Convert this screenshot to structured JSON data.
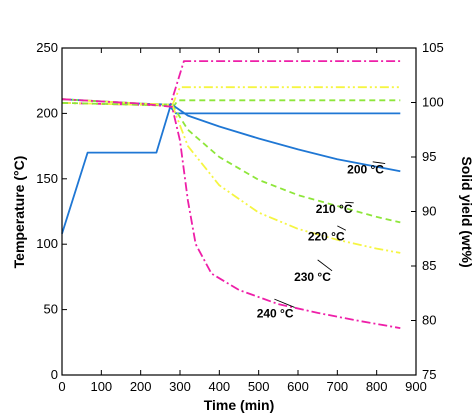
{
  "chart_data": {
    "type": "line",
    "xlabel": "Time (min)",
    "ylabel_left": "Temperature (°C)",
    "ylabel_right": "Solid yield (wt%)",
    "xlim": [
      0,
      900
    ],
    "ylim_left": [
      0,
      250
    ],
    "ylim_right": [
      75,
      105
    ],
    "x_ticks": [
      "0",
      "100",
      "200",
      "300",
      "400",
      "500",
      "600",
      "700",
      "800",
      "900"
    ],
    "y_ticks_left": [
      "0",
      "50",
      "100",
      "150",
      "200",
      "250"
    ],
    "y_ticks_right": [
      "75",
      "80",
      "85",
      "90",
      "95",
      "100",
      "105"
    ],
    "grid": false,
    "legend": "none",
    "series": [
      {
        "axis": "left",
        "color": "#1f77d4",
        "dash": "solid",
        "x": [
          0,
          65,
          240,
          275,
          290,
          860
        ],
        "y": [
          108,
          170,
          170,
          205,
          200,
          200
        ]
      },
      {
        "axis": "left",
        "color": "#ee1fa8",
        "dash": "dashdot",
        "x": [
          0,
          275,
          310,
          860
        ],
        "y": [
          208,
          206,
          240,
          240
        ]
      },
      {
        "axis": "left",
        "color": "#f5f542",
        "dash": "dashdotdot",
        "x": [
          0,
          280,
          300,
          860
        ],
        "y": [
          208,
          206,
          220,
          220
        ]
      },
      {
        "axis": "left",
        "color": "#8ee63a",
        "dash": "dashed",
        "x": [
          0,
          285,
          295,
          860
        ],
        "y": [
          208,
          206,
          210,
          210
        ]
      },
      {
        "axis": "right",
        "color": "#1f77d4",
        "dash": "solid",
        "x": [
          0,
          100,
          200,
          280,
          320,
          400,
          500,
          600,
          700,
          800,
          860
        ],
        "y": [
          100.3,
          100.1,
          99.9,
          99.8,
          98.8,
          97.8,
          96.7,
          95.7,
          94.8,
          94.1,
          93.7
        ]
      },
      {
        "axis": "right",
        "color": "#8ee63a",
        "dash": "dashed",
        "x": [
          0,
          100,
          200,
          280,
          320,
          400,
          500,
          600,
          700,
          800,
          860
        ],
        "y": [
          100.3,
          100.1,
          99.9,
          99.8,
          97.5,
          95.0,
          92.9,
          91.5,
          90.5,
          89.5,
          89.0
        ]
      },
      {
        "axis": "right",
        "color": "#f5f542",
        "dash": "dashdotdot",
        "x": [
          0,
          100,
          200,
          280,
          320,
          400,
          500,
          600,
          700,
          800,
          860
        ],
        "y": [
          100.3,
          100.1,
          99.9,
          99.8,
          96.0,
          92.4,
          89.9,
          88.4,
          87.4,
          86.6,
          86.2
        ]
      },
      {
        "axis": "right",
        "color": "#ee1fa8",
        "dash": "dashdot",
        "x": [
          0,
          100,
          200,
          280,
          300,
          320,
          340,
          380,
          450,
          550,
          650,
          750,
          860
        ],
        "y": [
          100.3,
          100.1,
          99.9,
          99.6,
          96.5,
          91.0,
          87.0,
          84.3,
          82.8,
          81.5,
          80.7,
          80.0,
          79.3
        ]
      }
    ],
    "annotations": [
      {
        "text": "200 °C",
        "x": 725,
        "y": 154,
        "pointer_x": 790,
        "pointer_y": 163
      },
      {
        "text": "210 °C",
        "x": 645,
        "y": 124,
        "pointer_x": 720,
        "pointer_y": 132
      },
      {
        "text": "220 °C",
        "x": 625,
        "y": 103,
        "pointer_x": 700,
        "pointer_y": 114
      },
      {
        "text": "230 °C",
        "x": 590,
        "y": 72,
        "pointer_x": 650,
        "pointer_y": 88
      },
      {
        "text": "240 °C",
        "x": 495,
        "y": 44,
        "pointer_x": 540,
        "pointer_y": 58
      }
    ]
  }
}
